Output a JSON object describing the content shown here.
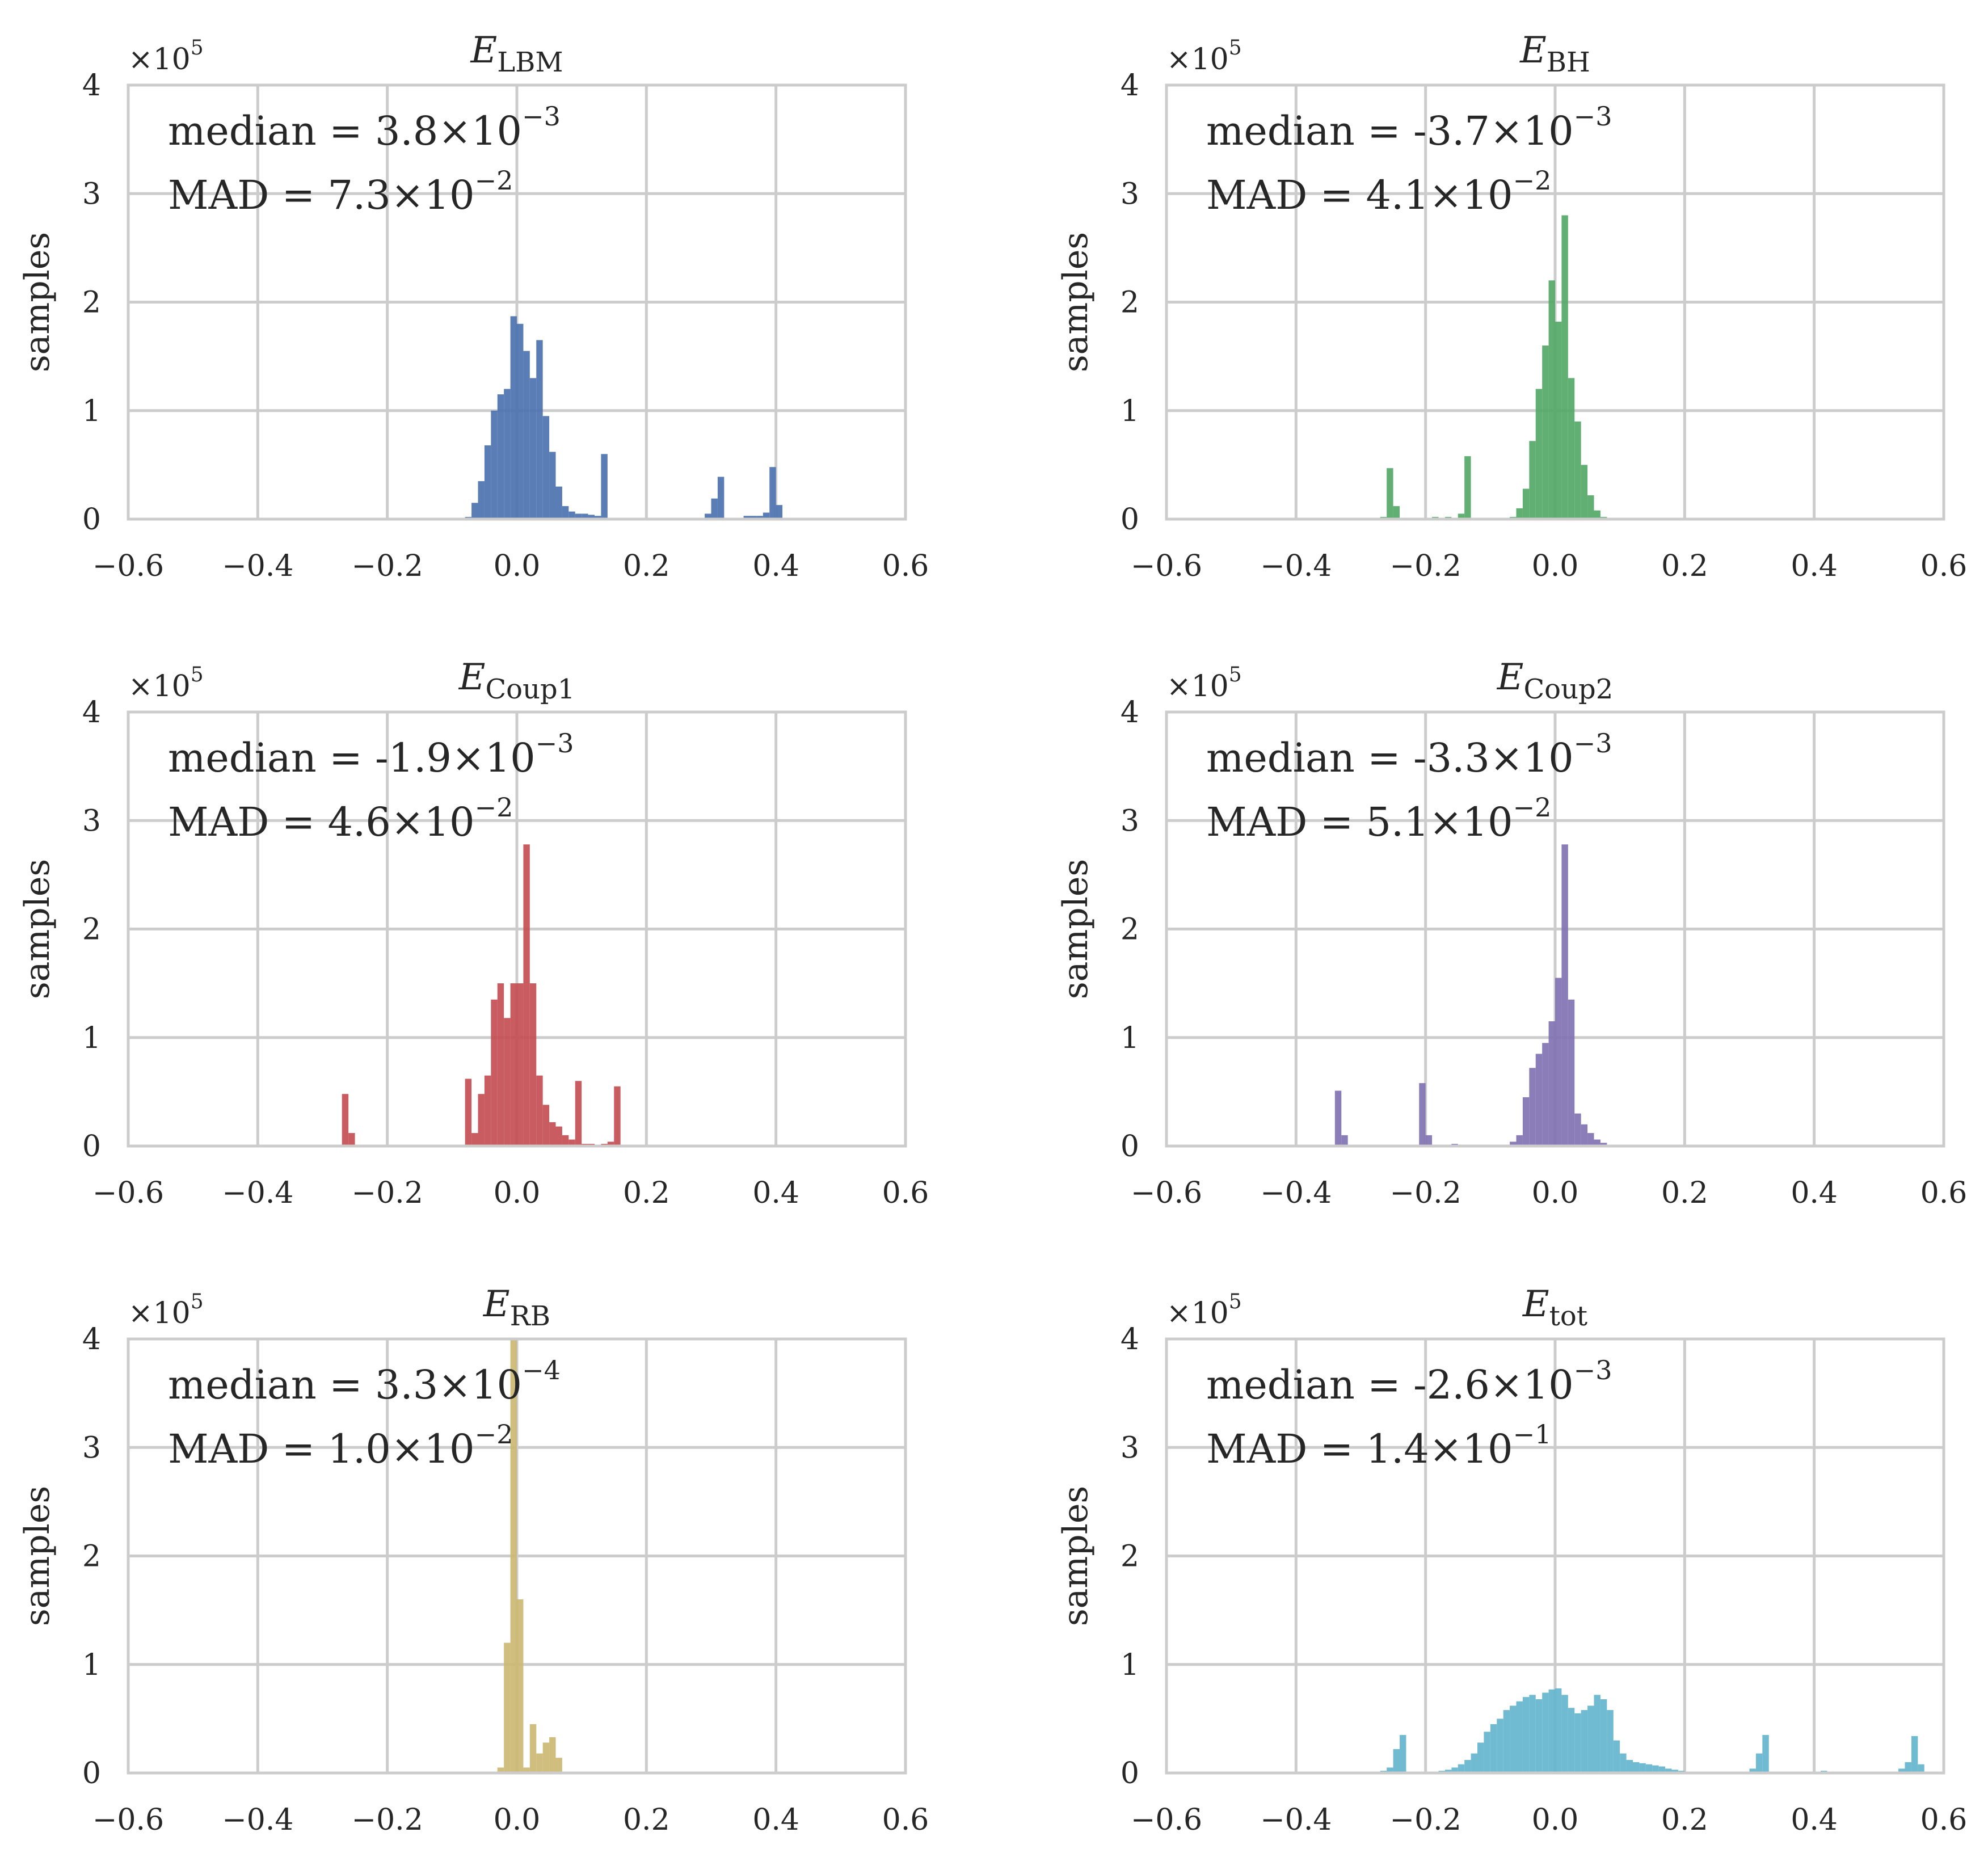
{
  "figure": {
    "y_axis_label": "samples",
    "y_multiplier": {
      "base": "×10",
      "exponent": "5"
    },
    "x_ticks": [
      "−0.6",
      "−0.4",
      "−0.2",
      "0.0",
      "0.2",
      "0.4",
      "0.6"
    ],
    "y_ticks": [
      "0",
      "1",
      "2",
      "3",
      "4"
    ]
  },
  "chart_data": [
    {
      "type": "bar",
      "title_main": "E",
      "title_sub": "LBM",
      "color": "#4c72b0",
      "xlim": [
        -0.6,
        0.6
      ],
      "ylim": [
        0,
        4
      ],
      "y_unit": "x10^5 samples",
      "grid": true,
      "bin_width": 0.01,
      "median_label": "median = 3.8×10",
      "median_exp": "−3",
      "mad_label": "MAD = 7.3×10",
      "mad_exp": "−2",
      "bins": [
        {
          "x": -0.075,
          "v": 0.02
        },
        {
          "x": -0.065,
          "v": 0.15
        },
        {
          "x": -0.055,
          "v": 0.35
        },
        {
          "x": -0.045,
          "v": 0.68
        },
        {
          "x": -0.035,
          "v": 1.0
        },
        {
          "x": -0.025,
          "v": 1.15
        },
        {
          "x": -0.015,
          "v": 1.2
        },
        {
          "x": -0.005,
          "v": 1.87
        },
        {
          "x": 0.005,
          "v": 1.8
        },
        {
          "x": 0.015,
          "v": 1.55
        },
        {
          "x": 0.025,
          "v": 1.3
        },
        {
          "x": 0.035,
          "v": 1.65
        },
        {
          "x": 0.045,
          "v": 0.95
        },
        {
          "x": 0.055,
          "v": 0.62
        },
        {
          "x": 0.065,
          "v": 0.3
        },
        {
          "x": 0.075,
          "v": 0.12
        },
        {
          "x": 0.085,
          "v": 0.07
        },
        {
          "x": 0.095,
          "v": 0.05
        },
        {
          "x": 0.105,
          "v": 0.05
        },
        {
          "x": 0.115,
          "v": 0.04
        },
        {
          "x": 0.125,
          "v": 0.03
        },
        {
          "x": 0.135,
          "v": 0.6
        },
        {
          "x": 0.145,
          "v": 0.01
        },
        {
          "x": 0.295,
          "v": 0.05
        },
        {
          "x": 0.305,
          "v": 0.19
        },
        {
          "x": 0.315,
          "v": 0.39
        },
        {
          "x": 0.355,
          "v": 0.03
        },
        {
          "x": 0.365,
          "v": 0.03
        },
        {
          "x": 0.375,
          "v": 0.03
        },
        {
          "x": 0.385,
          "v": 0.06
        },
        {
          "x": 0.395,
          "v": 0.48
        },
        {
          "x": 0.405,
          "v": 0.13
        }
      ]
    },
    {
      "type": "bar",
      "title_main": "E",
      "title_sub": "BH",
      "color": "#55a868",
      "xlim": [
        -0.6,
        0.6
      ],
      "ylim": [
        0,
        4
      ],
      "y_unit": "x10^5 samples",
      "grid": true,
      "bin_width": 0.01,
      "median_label": "median = -3.7×10",
      "median_exp": "−3",
      "mad_label": "MAD = 4.1×10",
      "mad_exp": "−2",
      "bins": [
        {
          "x": -0.265,
          "v": 0.02
        },
        {
          "x": -0.255,
          "v": 0.47
        },
        {
          "x": -0.245,
          "v": 0.12
        },
        {
          "x": -0.185,
          "v": 0.02
        },
        {
          "x": -0.165,
          "v": 0.02
        },
        {
          "x": -0.145,
          "v": 0.05
        },
        {
          "x": -0.135,
          "v": 0.58
        },
        {
          "x": -0.065,
          "v": 0.02
        },
        {
          "x": -0.055,
          "v": 0.1
        },
        {
          "x": -0.045,
          "v": 0.28
        },
        {
          "x": -0.035,
          "v": 0.72
        },
        {
          "x": -0.025,
          "v": 1.2
        },
        {
          "x": -0.015,
          "v": 1.6
        },
        {
          "x": -0.005,
          "v": 2.2
        },
        {
          "x": 0.005,
          "v": 1.82
        },
        {
          "x": 0.015,
          "v": 2.8
        },
        {
          "x": 0.025,
          "v": 1.3
        },
        {
          "x": 0.035,
          "v": 0.9
        },
        {
          "x": 0.045,
          "v": 0.5
        },
        {
          "x": 0.055,
          "v": 0.22
        },
        {
          "x": 0.065,
          "v": 0.08
        },
        {
          "x": 0.075,
          "v": 0.02
        }
      ]
    },
    {
      "type": "bar",
      "title_main": "E",
      "title_sub": "Coup1",
      "color": "#c44e52",
      "xlim": [
        -0.6,
        0.6
      ],
      "ylim": [
        0,
        4
      ],
      "y_unit": "x10^5 samples",
      "grid": true,
      "bin_width": 0.01,
      "median_label": "median = -1.9×10",
      "median_exp": "−3",
      "mad_label": "MAD = 4.6×10",
      "mad_exp": "−2",
      "bins": [
        {
          "x": -0.265,
          "v": 0.48
        },
        {
          "x": -0.255,
          "v": 0.12
        },
        {
          "x": -0.075,
          "v": 0.62
        },
        {
          "x": -0.065,
          "v": 0.12
        },
        {
          "x": -0.055,
          "v": 0.48
        },
        {
          "x": -0.045,
          "v": 0.65
        },
        {
          "x": -0.035,
          "v": 1.35
        },
        {
          "x": -0.025,
          "v": 1.5
        },
        {
          "x": -0.015,
          "v": 1.18
        },
        {
          "x": -0.005,
          "v": 1.5
        },
        {
          "x": 0.005,
          "v": 1.5
        },
        {
          "x": 0.015,
          "v": 2.78
        },
        {
          "x": 0.025,
          "v": 1.5
        },
        {
          "x": 0.035,
          "v": 0.65
        },
        {
          "x": 0.045,
          "v": 0.38
        },
        {
          "x": 0.055,
          "v": 0.22
        },
        {
          "x": 0.065,
          "v": 0.18
        },
        {
          "x": 0.075,
          "v": 0.1
        },
        {
          "x": 0.085,
          "v": 0.06
        },
        {
          "x": 0.095,
          "v": 0.6
        },
        {
          "x": 0.105,
          "v": 0.02
        },
        {
          "x": 0.115,
          "v": 0.02
        },
        {
          "x": 0.135,
          "v": 0.02
        },
        {
          "x": 0.145,
          "v": 0.04
        },
        {
          "x": 0.155,
          "v": 0.55
        }
      ]
    },
    {
      "type": "bar",
      "title_main": "E",
      "title_sub": "Coup2",
      "color": "#8172b2",
      "xlim": [
        -0.6,
        0.6
      ],
      "ylim": [
        0,
        4
      ],
      "y_unit": "x10^5 samples",
      "grid": true,
      "bin_width": 0.01,
      "median_label": "median = -3.3×10",
      "median_exp": "−3",
      "mad_label": "MAD = 5.1×10",
      "mad_exp": "−2",
      "bins": [
        {
          "x": -0.335,
          "v": 0.51
        },
        {
          "x": -0.325,
          "v": 0.1
        },
        {
          "x": -0.205,
          "v": 0.58
        },
        {
          "x": -0.195,
          "v": 0.1
        },
        {
          "x": -0.155,
          "v": 0.02
        },
        {
          "x": -0.065,
          "v": 0.04
        },
        {
          "x": -0.055,
          "v": 0.1
        },
        {
          "x": -0.045,
          "v": 0.45
        },
        {
          "x": -0.035,
          "v": 0.72
        },
        {
          "x": -0.025,
          "v": 0.85
        },
        {
          "x": -0.015,
          "v": 0.95
        },
        {
          "x": -0.005,
          "v": 1.15
        },
        {
          "x": 0.005,
          "v": 1.55
        },
        {
          "x": 0.015,
          "v": 2.78
        },
        {
          "x": 0.025,
          "v": 1.35
        },
        {
          "x": 0.035,
          "v": 0.3
        },
        {
          "x": 0.045,
          "v": 0.2
        },
        {
          "x": 0.055,
          "v": 0.12
        },
        {
          "x": 0.065,
          "v": 0.06
        },
        {
          "x": 0.075,
          "v": 0.03
        }
      ]
    },
    {
      "type": "bar",
      "title_main": "E",
      "title_sub": "RB",
      "color": "#ccb974",
      "xlim": [
        -0.6,
        0.6
      ],
      "ylim": [
        0,
        4
      ],
      "y_unit": "x10^5 samples",
      "grid": true,
      "bin_width": 0.01,
      "median_label": "median = 3.3×10",
      "median_exp": "−4",
      "mad_label": "MAD = 1.0×10",
      "mad_exp": "−2",
      "bins": [
        {
          "x": -0.025,
          "v": 0.05
        },
        {
          "x": -0.015,
          "v": 1.2
        },
        {
          "x": -0.005,
          "v": 4.0
        },
        {
          "x": 0.005,
          "v": 1.6
        },
        {
          "x": 0.015,
          "v": 0.05
        },
        {
          "x": 0.025,
          "v": 0.45
        },
        {
          "x": 0.035,
          "v": 0.18
        },
        {
          "x": 0.045,
          "v": 0.28
        },
        {
          "x": 0.055,
          "v": 0.33
        },
        {
          "x": 0.065,
          "v": 0.14
        }
      ]
    },
    {
      "type": "bar",
      "title_main": "E",
      "title_sub": "tot",
      "color": "#64b5cd",
      "xlim": [
        -0.6,
        0.6
      ],
      "ylim": [
        0,
        4
      ],
      "y_unit": "x10^5 samples",
      "grid": true,
      "bin_width": 0.01,
      "median_label": "median = -2.6×10",
      "median_exp": "−3",
      "mad_label": "MAD = 1.4×10",
      "mad_exp": "−1",
      "bins": [
        {
          "x": -0.265,
          "v": 0.02
        },
        {
          "x": -0.255,
          "v": 0.05
        },
        {
          "x": -0.245,
          "v": 0.22
        },
        {
          "x": -0.235,
          "v": 0.35
        },
        {
          "x": -0.205,
          "v": 0.01
        },
        {
          "x": -0.195,
          "v": 0.01
        },
        {
          "x": -0.185,
          "v": 0.01
        },
        {
          "x": -0.175,
          "v": 0.02
        },
        {
          "x": -0.165,
          "v": 0.03
        },
        {
          "x": -0.155,
          "v": 0.05
        },
        {
          "x": -0.145,
          "v": 0.08
        },
        {
          "x": -0.135,
          "v": 0.12
        },
        {
          "x": -0.125,
          "v": 0.18
        },
        {
          "x": -0.115,
          "v": 0.28
        },
        {
          "x": -0.105,
          "v": 0.38
        },
        {
          "x": -0.095,
          "v": 0.45
        },
        {
          "x": -0.085,
          "v": 0.5
        },
        {
          "x": -0.075,
          "v": 0.58
        },
        {
          "x": -0.065,
          "v": 0.62
        },
        {
          "x": -0.055,
          "v": 0.66
        },
        {
          "x": -0.045,
          "v": 0.7
        },
        {
          "x": -0.035,
          "v": 0.72
        },
        {
          "x": -0.025,
          "v": 0.68
        },
        {
          "x": -0.015,
          "v": 0.74
        },
        {
          "x": -0.005,
          "v": 0.77
        },
        {
          "x": 0.005,
          "v": 0.78
        },
        {
          "x": 0.015,
          "v": 0.72
        },
        {
          "x": 0.025,
          "v": 0.6
        },
        {
          "x": 0.035,
          "v": 0.55
        },
        {
          "x": 0.045,
          "v": 0.58
        },
        {
          "x": 0.055,
          "v": 0.62
        },
        {
          "x": 0.065,
          "v": 0.72
        },
        {
          "x": 0.075,
          "v": 0.68
        },
        {
          "x": 0.085,
          "v": 0.58
        },
        {
          "x": 0.095,
          "v": 0.3
        },
        {
          "x": 0.105,
          "v": 0.18
        },
        {
          "x": 0.115,
          "v": 0.12
        },
        {
          "x": 0.125,
          "v": 0.1
        },
        {
          "x": 0.135,
          "v": 0.09
        },
        {
          "x": 0.145,
          "v": 0.08
        },
        {
          "x": 0.155,
          "v": 0.07
        },
        {
          "x": 0.165,
          "v": 0.06
        },
        {
          "x": 0.175,
          "v": 0.04
        },
        {
          "x": 0.185,
          "v": 0.03
        },
        {
          "x": 0.195,
          "v": 0.02
        },
        {
          "x": 0.205,
          "v": 0.01
        },
        {
          "x": 0.215,
          "v": 0.01
        },
        {
          "x": 0.225,
          "v": 0.01
        },
        {
          "x": 0.245,
          "v": 0.01
        },
        {
          "x": 0.275,
          "v": 0.01
        },
        {
          "x": 0.305,
          "v": 0.04
        },
        {
          "x": 0.315,
          "v": 0.18
        },
        {
          "x": 0.325,
          "v": 0.35
        },
        {
          "x": 0.415,
          "v": 0.02
        },
        {
          "x": 0.425,
          "v": 0.01
        },
        {
          "x": 0.465,
          "v": 0.01
        },
        {
          "x": 0.475,
          "v": 0.01
        },
        {
          "x": 0.535,
          "v": 0.04
        },
        {
          "x": 0.545,
          "v": 0.1
        },
        {
          "x": 0.555,
          "v": 0.34
        },
        {
          "x": 0.565,
          "v": 0.08
        }
      ]
    }
  ]
}
